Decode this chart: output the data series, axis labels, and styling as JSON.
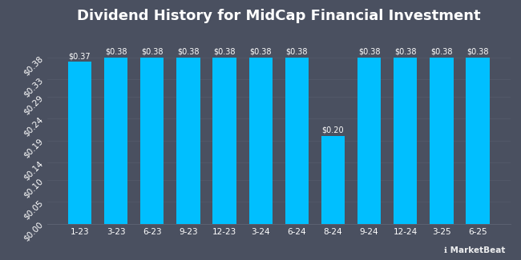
{
  "title": "Dividend History for MidCap Financial Investment",
  "categories": [
    "1-23",
    "3-23",
    "6-23",
    "9-23",
    "12-23",
    "3-24",
    "6-24",
    "8-24",
    "9-24",
    "12-24",
    "3-25",
    "6-25"
  ],
  "values": [
    0.37,
    0.38,
    0.38,
    0.38,
    0.38,
    0.38,
    0.38,
    0.2,
    0.38,
    0.38,
    0.38,
    0.38
  ],
  "bar_color": "#00bfff",
  "background_color": "#4a5060",
  "plot_bg_color": "#4a5060",
  "text_color": "#ffffff",
  "grid_color": "#5a6070",
  "bar_labels": [
    "$0.37",
    "$0.38",
    "$0.38",
    "$0.38",
    "$0.38",
    "$0.38",
    "$0.38",
    "$0.20",
    "$0.38",
    "$0.38",
    "$0.38",
    "$0.38"
  ],
  "yticks": [
    0.0,
    0.05,
    0.1,
    0.14,
    0.19,
    0.24,
    0.29,
    0.33,
    0.38
  ],
  "ytick_labels": [
    "$0.00",
    "$0.05",
    "$0.10",
    "$0.14",
    "$0.19",
    "$0.24",
    "$0.29",
    "$0.33",
    "$0.38"
  ],
  "ylim": [
    0,
    0.44
  ],
  "title_fontsize": 13,
  "tick_fontsize": 7.5,
  "label_fontsize": 7,
  "watermark": "MarketBeat"
}
